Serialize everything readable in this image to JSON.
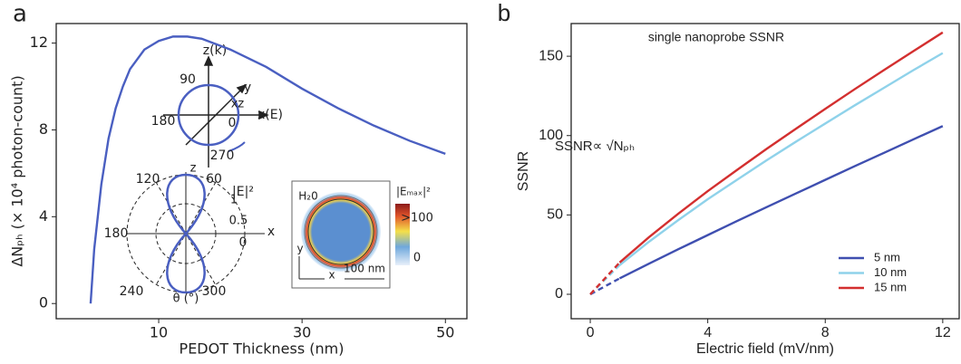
{
  "chart_data": [
    {
      "type": "line",
      "label": "a",
      "xlabel": "PEDOT Thickness (nm)",
      "ylabel": "ΔNₚₕ (× 10⁴ photon-count)",
      "x": [
        0.5,
        1,
        2,
        3,
        4,
        5,
        6,
        8,
        10,
        12,
        14,
        16,
        20,
        25,
        30,
        35,
        40,
        45,
        50
      ],
      "values": [
        0,
        2.5,
        5.5,
        7.6,
        9,
        10,
        10.8,
        11.7,
        12.1,
        12.3,
        12.3,
        12.2,
        11.7,
        10.9,
        9.9,
        9.0,
        8.2,
        7.5,
        6.9
      ],
      "color": "#4a5fc1",
      "xlim": [
        -4.3,
        53
      ],
      "ylim": [
        -0.7,
        12.9
      ],
      "xticks": [
        10,
        30,
        50
      ],
      "yticks": [
        0,
        4,
        8,
        12
      ],
      "annotations": [
        "z(k)",
        "90",
        "y",
        "xz",
        "x(E)",
        "180",
        "0",
        "270",
        "z",
        "120",
        "60",
        "|E|²",
        "1",
        "0.5",
        "180",
        "0",
        "x",
        "240",
        "300",
        "θ (°)",
        "H₂0",
        "|Eₘₐₓ|²",
        ">100",
        "0",
        "y",
        "x",
        "100 nm"
      ]
    },
    {
      "type": "line",
      "label": "b",
      "title": "single nanoprobe SSNR",
      "xlabel": "Electric field (mV/nm)",
      "ylabel": "SSNR",
      "x": [
        0,
        1,
        2,
        3,
        4,
        5,
        6,
        7,
        8,
        9,
        10,
        11,
        12
      ],
      "series": [
        {
          "name": "5 nm",
          "color": "#3f4fb0",
          "values": [
            0,
            10.0,
            19.3,
            28.4,
            37.3,
            46.2,
            54.9,
            63.5,
            72.1,
            80.7,
            89.1,
            97.6,
            106
          ]
        },
        {
          "name": "10 nm",
          "color": "#8fd2ea",
          "values": [
            0,
            18.4,
            33.1,
            46.8,
            59.9,
            72.2,
            84.4,
            96.1,
            107.6,
            119.0,
            130.1,
            141.2,
            152
          ]
        },
        {
          "name": "15 nm",
          "color": "#d32f2f",
          "values": [
            0,
            20.0,
            36.0,
            50.8,
            65,
            78.4,
            91.6,
            104.3,
            116.8,
            129.2,
            141.3,
            153.2,
            165
          ]
        }
      ],
      "first_segment_dashed": true,
      "xlim": [
        -0.65,
        12.56
      ],
      "ylim": [
        -15.4,
        170.6
      ],
      "xticks": [
        0,
        4,
        8,
        12
      ],
      "yticks": [
        0,
        50,
        100,
        150
      ],
      "annotations": [
        "SSNR∝ √Nₚₕ"
      ]
    }
  ]
}
